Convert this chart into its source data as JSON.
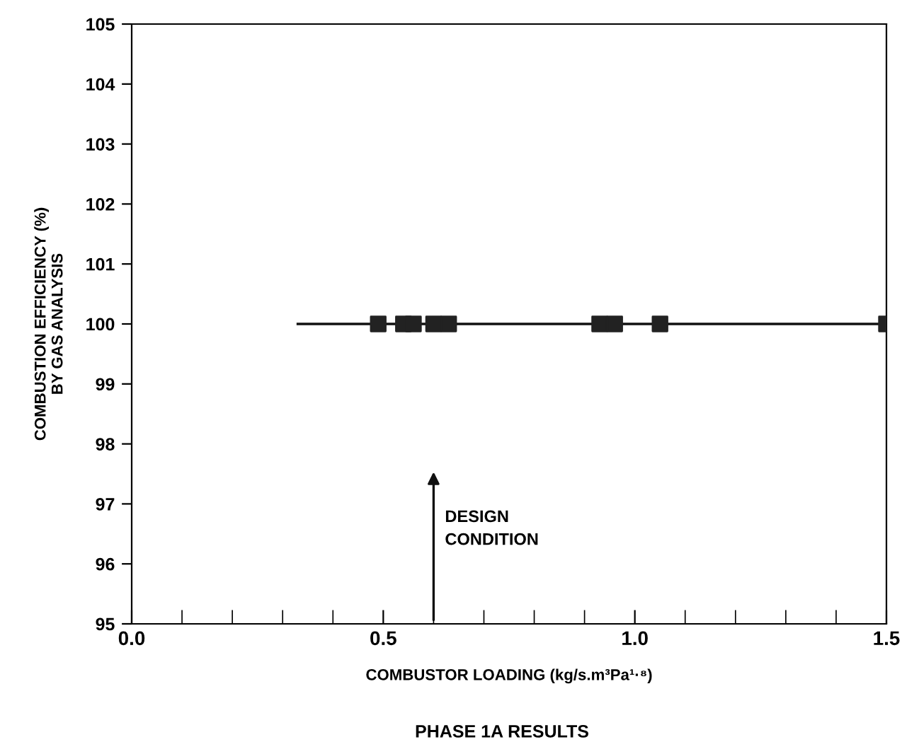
{
  "chart_data": {
    "type": "scatter",
    "title": "PHASE 1A RESULTS",
    "xlabel": "COMBUSTOR LOADING (kg/s.m³Pa¹·⁸)",
    "ylabel": "COMBUSTION EFFICIENCY (%)\nBY GAS ANALYSIS",
    "xlim": [
      0,
      1.5
    ],
    "xticks": [
      {
        "value": 0,
        "label": "0.0"
      },
      0.5,
      {
        "value": 1,
        "label": "1.0"
      },
      1.5
    ],
    "ylim": [
      95,
      105
    ],
    "yticks": [
      95,
      96,
      97,
      98,
      99,
      100,
      101,
      102,
      103,
      104,
      105
    ],
    "grid": false,
    "marker": "square",
    "series": [
      {
        "type": "line",
        "marker": "none",
        "color": "#111111",
        "x": [
          0.33,
          1.5
        ],
        "values": [
          100,
          100
        ]
      },
      {
        "color": "#222222",
        "x": [
          0.49,
          0.54,
          0.56,
          0.6,
          0.63,
          0.93,
          0.96,
          1.05,
          1.5
        ],
        "values": [
          100,
          100,
          100,
          100,
          100,
          100,
          100,
          100,
          100
        ]
      }
    ],
    "annotations": [
      "DESIGN\nCONDITION"
    ]
  }
}
